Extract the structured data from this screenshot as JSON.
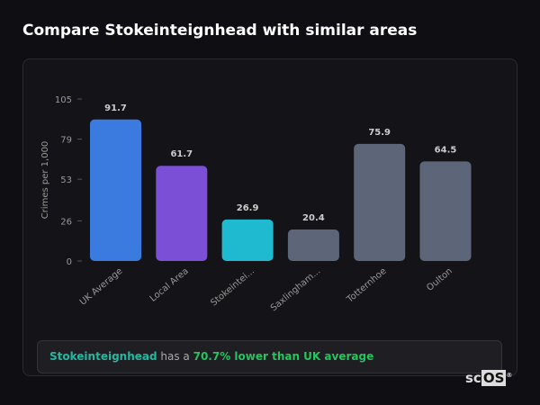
{
  "title": "Compare Stokeinteignhead with similar areas",
  "chart_data": {
    "type": "bar",
    "ylabel": "Crimes per 1,000",
    "ylim": [
      0,
      105
    ],
    "yticks": [
      0,
      26,
      53,
      79,
      105
    ],
    "grid": false,
    "categories": [
      "UK Average",
      "Local Area",
      "Stokeintei...",
      "Saxlingham...",
      "Totternhoe",
      "Oulton"
    ],
    "values": [
      91.7,
      61.7,
      26.9,
      20.4,
      75.9,
      64.5
    ],
    "colors": [
      "#3b7be0",
      "#7b4fd6",
      "#1fb9d0",
      "#5c6678",
      "#5c6678",
      "#5c6678"
    ]
  },
  "summary": {
    "place": "Stokeinteignhead",
    "middle": " has a ",
    "stat": "70.7% lower than UK average"
  },
  "logo": {
    "text1": "sc",
    "text2": "OS",
    "reg": "®"
  }
}
